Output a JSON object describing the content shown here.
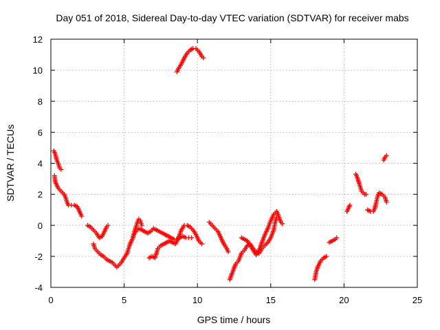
{
  "chart_data": {
    "type": "scatter",
    "title": "Day 051 of 2018, Sidereal Day-to-day VTEC variation (SDTVAR) for receiver mabs",
    "xlabel": "GPS time / hours",
    "ylabel": "SDTVAR / TECUs",
    "xlim": [
      0,
      25
    ],
    "ylim": [
      -4,
      12
    ],
    "xticks": [
      0,
      5,
      10,
      15,
      20,
      25
    ],
    "yticks": [
      -4,
      -2,
      0,
      2,
      4,
      6,
      8,
      10,
      12
    ],
    "grid": true,
    "marker": "plus",
    "color": "#ff0000",
    "segments": [
      [
        [
          0.2,
          4.8
        ],
        [
          0.3,
          4.6
        ],
        [
          0.4,
          4.2
        ],
        [
          0.5,
          4.0
        ],
        [
          0.6,
          3.7
        ],
        [
          0.7,
          3.6
        ]
      ],
      [
        [
          0.25,
          3.2
        ],
        [
          0.3,
          2.8
        ],
        [
          0.4,
          2.6
        ],
        [
          0.5,
          2.4
        ],
        [
          0.7,
          2.2
        ],
        [
          0.9,
          2.0
        ],
        [
          1.0,
          1.8
        ],
        [
          1.1,
          1.5
        ],
        [
          1.2,
          1.3
        ],
        [
          1.4,
          1.3
        ],
        [
          1.6,
          1.3
        ],
        [
          1.8,
          1.2
        ],
        [
          1.9,
          1.0
        ],
        [
          2.0,
          0.8
        ],
        [
          2.1,
          0.6
        ]
      ],
      [
        [
          2.5,
          0.0
        ],
        [
          2.7,
          -0.1
        ],
        [
          2.9,
          -0.3
        ],
        [
          3.1,
          -0.5
        ],
        [
          3.3,
          -0.8
        ],
        [
          3.5,
          -0.7
        ],
        [
          3.6,
          -0.5
        ],
        [
          3.7,
          -0.3
        ],
        [
          3.8,
          -0.1
        ],
        [
          3.9,
          0.0
        ]
      ],
      [
        [
          2.9,
          -1.2
        ],
        [
          3.0,
          -1.5
        ],
        [
          3.2,
          -1.7
        ],
        [
          3.4,
          -1.9
        ],
        [
          3.6,
          -2.0
        ],
        [
          3.8,
          -2.2
        ],
        [
          4.0,
          -2.3
        ],
        [
          4.2,
          -2.4
        ],
        [
          4.4,
          -2.6
        ],
        [
          4.5,
          -2.7
        ],
        [
          4.6,
          -2.6
        ],
        [
          4.8,
          -2.4
        ],
        [
          5.0,
          -2.1
        ],
        [
          5.2,
          -1.8
        ],
        [
          5.3,
          -1.5
        ],
        [
          5.4,
          -1.2
        ],
        [
          5.5,
          -1.0
        ],
        [
          5.6,
          -0.8
        ],
        [
          5.7,
          -0.4
        ],
        [
          5.8,
          -0.1
        ],
        [
          5.9,
          0.2
        ],
        [
          6.0,
          0.4
        ],
        [
          6.1,
          0.3
        ],
        [
          6.2,
          0.0
        ]
      ],
      [
        [
          5.6,
          -0.7
        ],
        [
          5.8,
          -0.4
        ],
        [
          6.0,
          -0.2
        ],
        [
          6.2,
          -0.3
        ],
        [
          6.4,
          -0.4
        ],
        [
          6.6,
          -0.5
        ],
        [
          6.8,
          -0.4
        ],
        [
          7.0,
          -0.2
        ],
        [
          7.2,
          -0.3
        ],
        [
          7.4,
          -0.4
        ],
        [
          7.6,
          -0.5
        ],
        [
          7.8,
          -0.6
        ],
        [
          8.0,
          -0.7
        ],
        [
          8.2,
          -0.8
        ],
        [
          8.4,
          -0.9
        ],
        [
          8.6,
          -0.9
        ],
        [
          8.8,
          -0.8
        ],
        [
          9.0,
          -0.7
        ],
        [
          9.2,
          -0.8
        ],
        [
          9.4,
          -0.8
        ],
        [
          9.6,
          -0.8
        ]
      ],
      [
        [
          6.7,
          -2.1
        ],
        [
          6.9,
          -2.0
        ],
        [
          7.1,
          -2.1
        ],
        [
          7.2,
          -1.8
        ],
        [
          7.3,
          -1.5
        ],
        [
          7.5,
          -1.3
        ],
        [
          7.7,
          -1.2
        ],
        [
          7.9,
          -1.1
        ],
        [
          8.1,
          -1.0
        ],
        [
          8.3,
          -1.1
        ],
        [
          8.5,
          -1.2
        ],
        [
          8.7,
          -0.8
        ],
        [
          8.9,
          -0.3
        ],
        [
          9.1,
          0.0
        ],
        [
          9.3,
          0.0
        ],
        [
          9.5,
          -0.1
        ],
        [
          9.7,
          -0.3
        ],
        [
          9.9,
          -0.6
        ],
        [
          10.1,
          -1.0
        ],
        [
          10.3,
          -1.2
        ]
      ],
      [
        [
          8.6,
          9.9
        ],
        [
          8.7,
          10.1
        ],
        [
          8.9,
          10.4
        ],
        [
          9.1,
          10.8
        ],
        [
          9.3,
          11.1
        ],
        [
          9.5,
          11.3
        ],
        [
          9.7,
          11.4
        ],
        [
          9.9,
          11.4
        ],
        [
          10.1,
          11.2
        ],
        [
          10.3,
          10.9
        ],
        [
          10.4,
          10.8
        ]
      ],
      [
        [
          10.8,
          0.2
        ],
        [
          11.0,
          0.0
        ],
        [
          11.2,
          -0.2
        ],
        [
          11.4,
          -0.4
        ],
        [
          11.6,
          -0.8
        ],
        [
          11.8,
          -1.2
        ],
        [
          12.0,
          -1.5
        ],
        [
          12.1,
          -1.7
        ]
      ],
      [
        [
          12.2,
          -3.5
        ],
        [
          12.4,
          -3.0
        ],
        [
          12.6,
          -2.5
        ],
        [
          12.8,
          -2.3
        ],
        [
          13.0,
          -1.8
        ],
        [
          13.2,
          -1.6
        ],
        [
          13.4,
          -1.3
        ],
        [
          13.6,
          -1.2
        ],
        [
          13.8,
          -1.5
        ],
        [
          14.0,
          -1.7
        ],
        [
          14.2,
          -1.8
        ],
        [
          14.4,
          -1.5
        ],
        [
          14.6,
          -1.3
        ],
        [
          14.8,
          -1.1
        ],
        [
          15.0,
          -0.8
        ],
        [
          15.2,
          -0.3
        ],
        [
          15.3,
          0.2
        ],
        [
          15.4,
          0.5
        ]
      ],
      [
        [
          13.0,
          -0.8
        ],
        [
          13.2,
          -0.9
        ],
        [
          13.4,
          -1.0
        ],
        [
          13.6,
          -1.3
        ],
        [
          13.8,
          -1.6
        ],
        [
          14.0,
          -1.9
        ],
        [
          14.2,
          -1.6
        ],
        [
          14.4,
          -1.1
        ],
        [
          14.6,
          -0.6
        ],
        [
          14.8,
          -0.2
        ],
        [
          15.0,
          0.3
        ],
        [
          15.2,
          0.7
        ],
        [
          15.4,
          0.9
        ],
        [
          15.5,
          0.7
        ],
        [
          15.6,
          0.4
        ],
        [
          15.7,
          0.2
        ],
        [
          15.8,
          0.1
        ]
      ],
      [
        [
          18.0,
          -3.5
        ],
        [
          18.1,
          -3.0
        ],
        [
          18.2,
          -2.7
        ],
        [
          18.3,
          -2.5
        ],
        [
          18.4,
          -2.3
        ],
        [
          18.6,
          -2.1
        ],
        [
          18.8,
          -2.0
        ]
      ],
      [
        [
          19.0,
          -1.1
        ],
        [
          19.2,
          -1.0
        ],
        [
          19.4,
          -0.9
        ],
        [
          19.5,
          -0.8
        ]
      ],
      [
        [
          20.2,
          0.9
        ],
        [
          20.3,
          1.1
        ],
        [
          20.4,
          1.3
        ]
      ],
      [
        [
          20.8,
          3.3
        ],
        [
          20.9,
          3.1
        ],
        [
          21.0,
          2.8
        ],
        [
          21.1,
          2.5
        ],
        [
          21.2,
          2.2
        ],
        [
          21.4,
          2.0
        ],
        [
          21.5,
          2.0
        ]
      ],
      [
        [
          21.6,
          1.0
        ],
        [
          21.8,
          0.9
        ],
        [
          22.0,
          0.9
        ],
        [
          22.1,
          1.1
        ],
        [
          22.2,
          1.5
        ],
        [
          22.3,
          1.9
        ],
        [
          22.4,
          2.1
        ],
        [
          22.6,
          2.0
        ],
        [
          22.8,
          1.8
        ],
        [
          22.9,
          1.5
        ]
      ],
      [
        [
          22.7,
          4.2
        ],
        [
          22.8,
          4.4
        ],
        [
          22.9,
          4.5
        ]
      ]
    ]
  }
}
